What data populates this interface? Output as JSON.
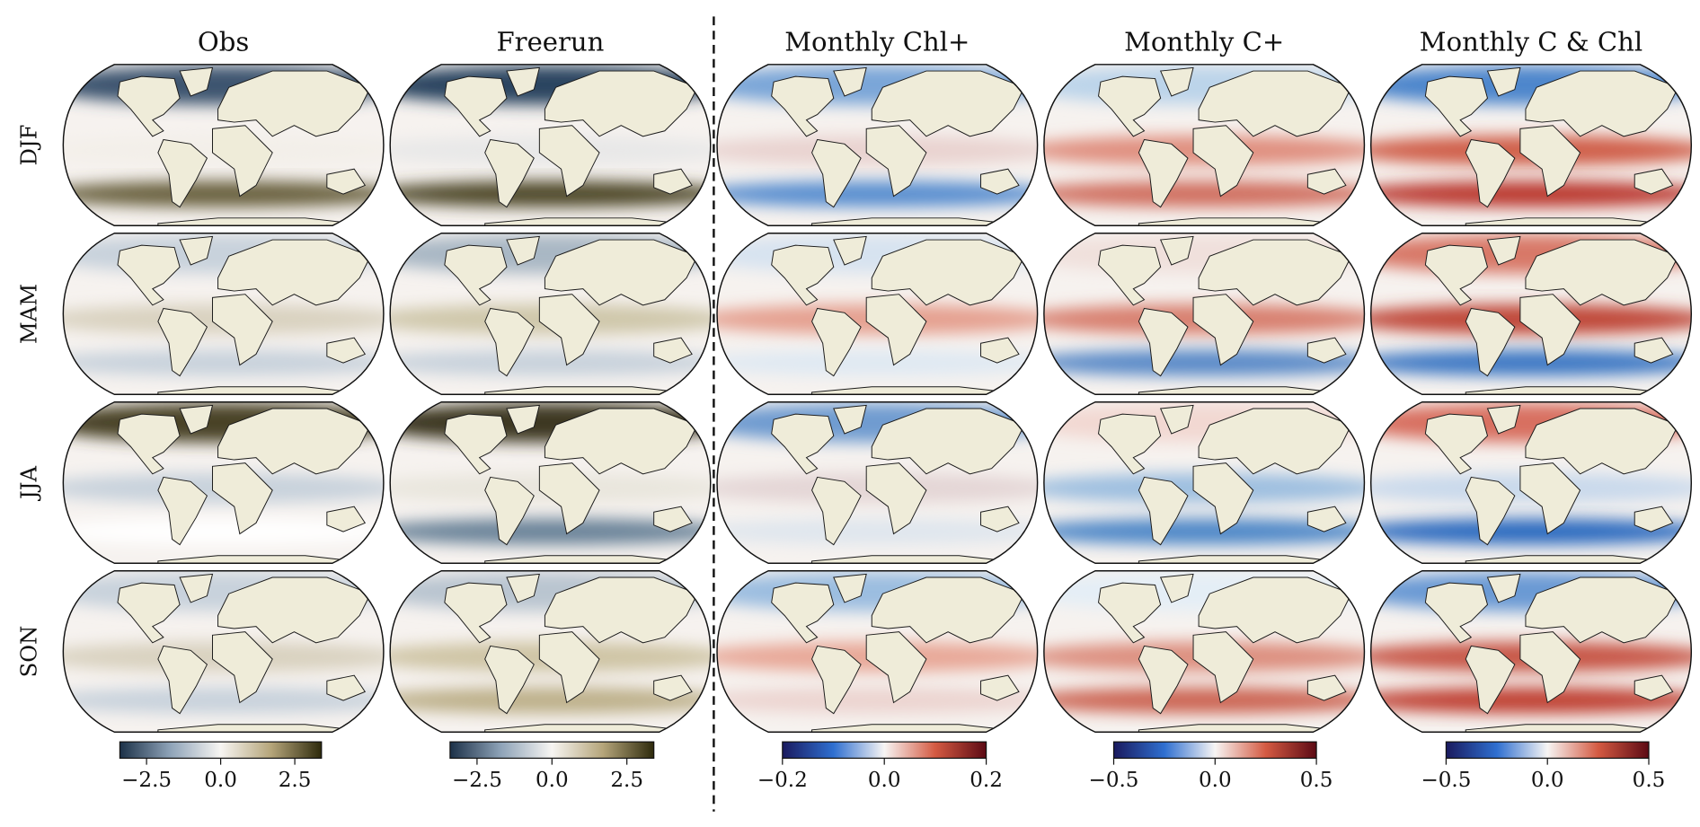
{
  "columns": [
    {
      "title": "Obs",
      "colorbar": {
        "lim": [
          -3.4,
          3.4
        ],
        "ticks": [
          {
            "value": -2.5,
            "label": "−2.5"
          },
          {
            "value": 0,
            "label": "0.0"
          },
          2.5
        ],
        "colors": [
          "#1c3148",
          "#8ea3b8",
          "#f7f5f2",
          "#b5a57a",
          "#2e2a0c"
        ]
      }
    },
    {
      "title": "Freerun",
      "colorbar": {
        "lim": [
          -3.4,
          3.4
        ],
        "ticks": [
          {
            "value": -2.5,
            "label": "−2.5"
          },
          {
            "value": 0,
            "label": "0.0"
          },
          2.5
        ],
        "colors": [
          "#1c3148",
          "#8ea3b8",
          "#f7f5f2",
          "#b5a57a",
          "#2e2a0c"
        ]
      }
    },
    {
      "title": "Monthly Chl+",
      "colorbar": {
        "lim": [
          -0.2,
          0.2
        ],
        "ticks": [
          {
            "value": -0.2,
            "label": "−0.2"
          },
          {
            "value": 0,
            "label": "0.0"
          },
          0.2
        ],
        "colors": [
          "#1a1a5e",
          "#2f6fd0",
          "#f7f5f4",
          "#d45a42",
          "#5c0a14"
        ]
      }
    },
    {
      "title": "Monthly C+",
      "colorbar": {
        "lim": [
          -0.5,
          0.5
        ],
        "ticks": [
          {
            "value": -0.5,
            "label": "−0.5"
          },
          {
            "value": 0,
            "label": "0.0"
          },
          0.5
        ],
        "colors": [
          "#1a1a5e",
          "#2f6fd0",
          "#f7f5f4",
          "#d45a42",
          "#5c0a14"
        ]
      }
    },
    {
      "title": "Monthly C & Chl",
      "colorbar": {
        "lim": [
          -0.5,
          0.5
        ],
        "ticks": [
          {
            "value": -0.5,
            "label": "−0.5"
          },
          {
            "value": 0,
            "label": "0.0"
          },
          0.5
        ],
        "colors": [
          "#1a1a5e",
          "#2f6fd0",
          "#f7f5f4",
          "#d45a42",
          "#5c0a14"
        ]
      }
    }
  ],
  "rows": [
    "DJF",
    "MAM",
    "JJA",
    "SON"
  ]
}
